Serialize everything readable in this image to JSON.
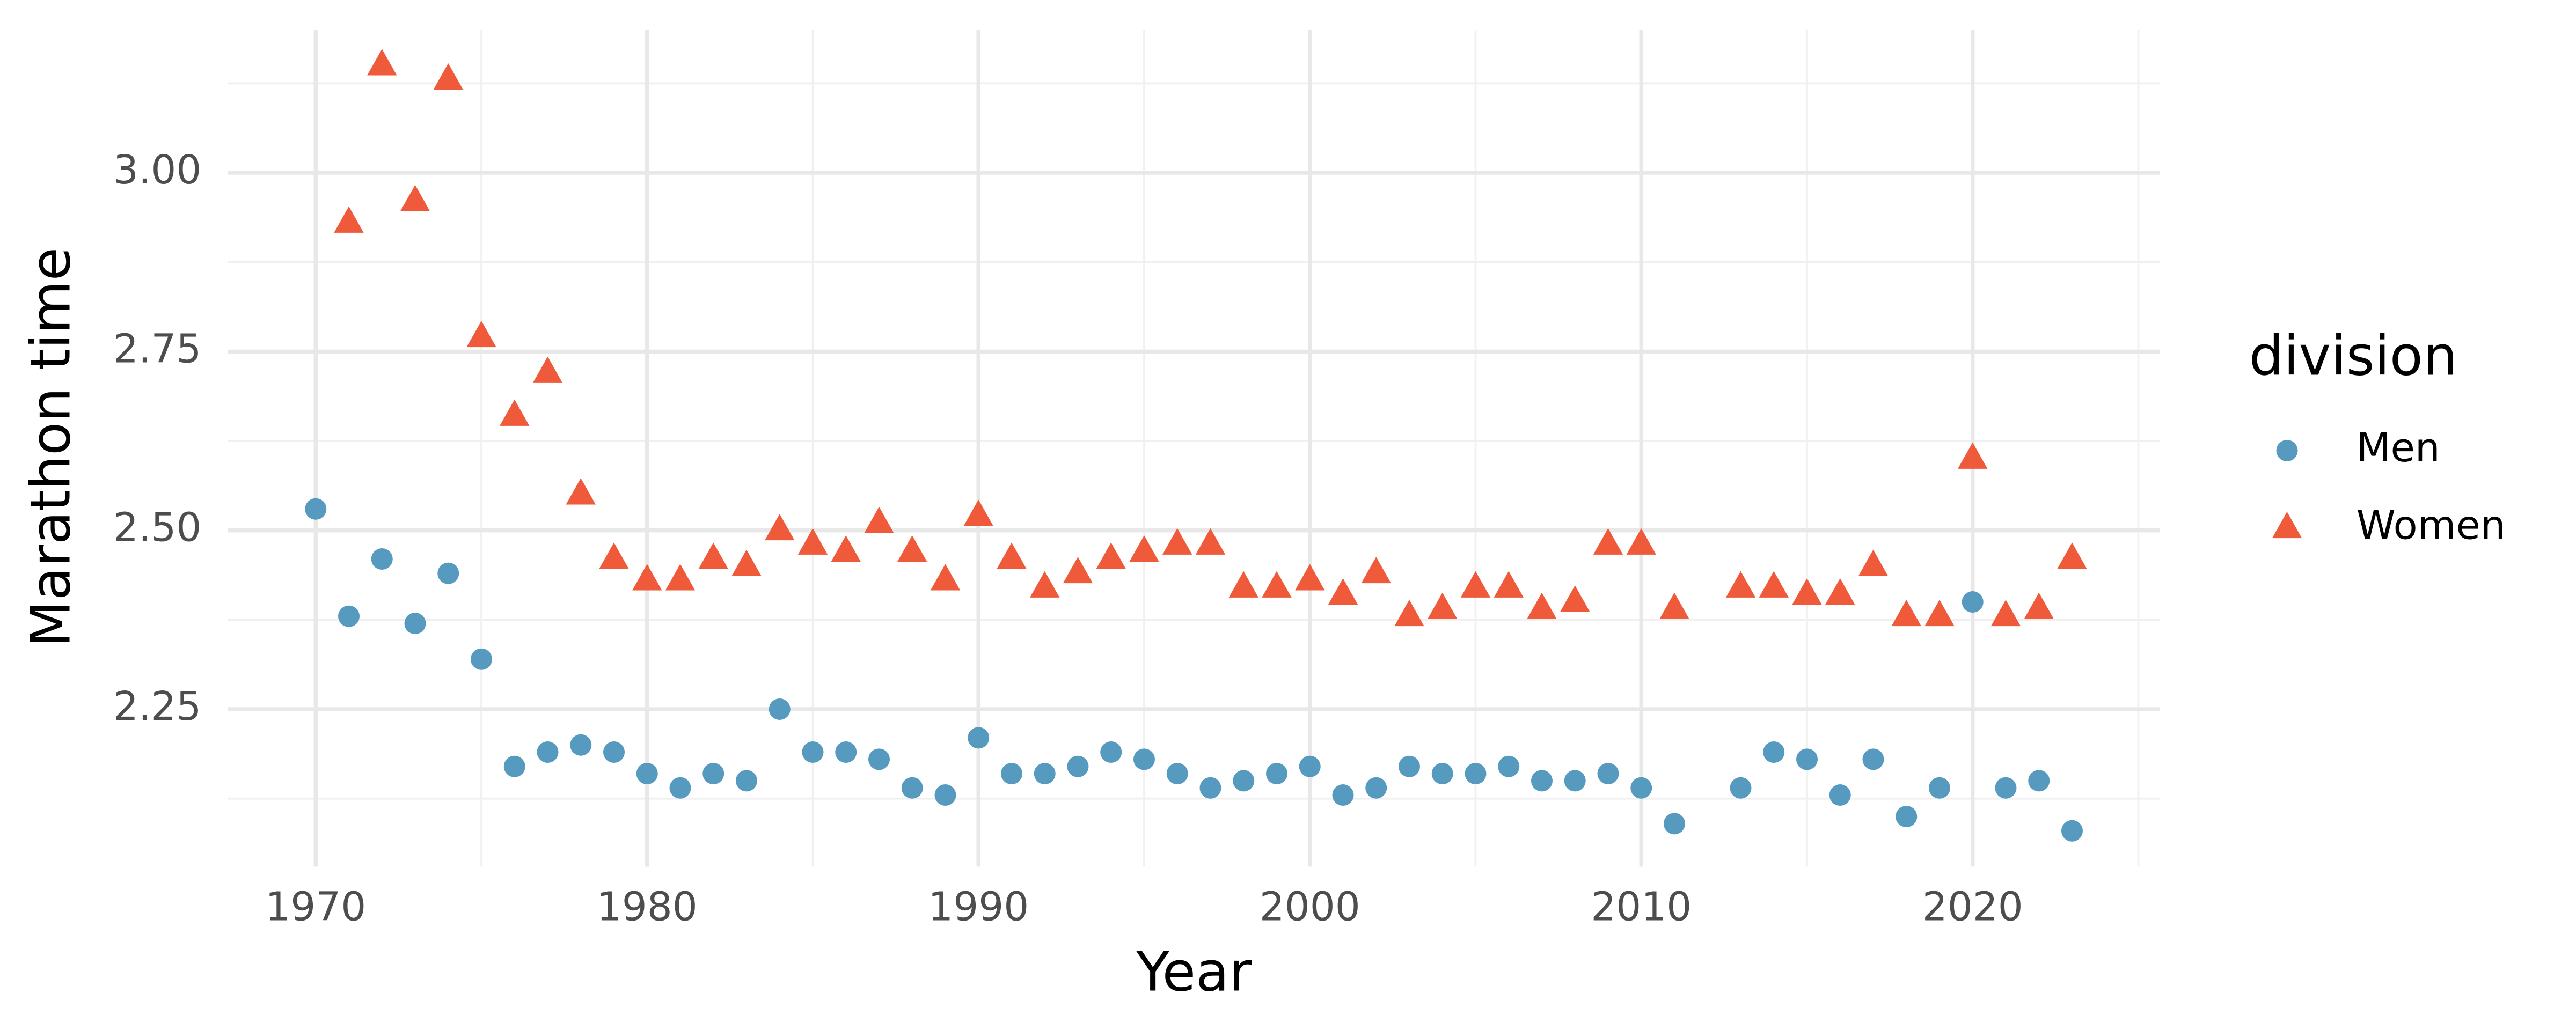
{
  "chart_data": {
    "type": "scatter",
    "x_label": "Year",
    "y_label": "Marathon time",
    "legend_title": "division",
    "legend_position": "right",
    "grid": true,
    "xlim": [
      1967.35,
      2025.65
    ],
    "ylim": [
      2.03,
      3.2
    ],
    "xticks": [
      1970,
      1980,
      1990,
      2000,
      2010,
      2020
    ],
    "xminor": [
      1975,
      1985,
      1995,
      2005,
      2015,
      2025
    ],
    "yticks": [
      2.25,
      {
        "value": 2.5,
        "label": "2.50"
      },
      2.75,
      {
        "value": 3,
        "label": "3.00"
      }
    ],
    "yminor": [
      2.125,
      2.375,
      2.625,
      2.875,
      3.125
    ],
    "x": [
      1970,
      1971,
      1972,
      1973,
      1974,
      1975,
      1976,
      1977,
      1978,
      1979,
      1980,
      1981,
      1982,
      1983,
      1984,
      1985,
      1986,
      1987,
      1988,
      1989,
      1990,
      1991,
      1992,
      1993,
      1994,
      1995,
      1996,
      1997,
      1998,
      1999,
      2000,
      2001,
      2002,
      2003,
      2004,
      2005,
      2006,
      2007,
      2008,
      2009,
      2010,
      2011,
      2012,
      2013,
      2014,
      2015,
      2016,
      2017,
      2018,
      2019,
      2020,
      2021,
      2022,
      2023
    ],
    "series": [
      {
        "name": "Men",
        "color": "#569bbf",
        "marker": "circle",
        "values": [
          2.53,
          2.38,
          2.46,
          2.37,
          2.44,
          2.32,
          2.17,
          2.19,
          2.2,
          2.19,
          2.16,
          2.14,
          2.16,
          2.15,
          2.25,
          2.19,
          2.19,
          2.18,
          2.14,
          2.13,
          2.21,
          2.16,
          2.16,
          2.17,
          2.19,
          2.18,
          2.16,
          2.14,
          2.15,
          2.16,
          2.17,
          2.13,
          2.14,
          2.17,
          2.16,
          2.16,
          2.17,
          2.15,
          2.15,
          2.16,
          2.14,
          2.09,
          null,
          2.14,
          2.19,
          2.18,
          2.13,
          2.18,
          2.1,
          2.14,
          2.4,
          2.14,
          2.15,
          2.08
        ]
      },
      {
        "name": "Women",
        "color": "#ee5a3a",
        "marker": "triangle",
        "values": [
          null,
          2.93,
          3.15,
          2.96,
          3.13,
          2.77,
          2.66,
          2.72,
          2.55,
          2.46,
          2.43,
          2.43,
          2.46,
          2.45,
          2.5,
          2.48,
          2.47,
          2.51,
          2.47,
          2.43,
          2.52,
          2.46,
          2.42,
          2.44,
          2.46,
          2.47,
          2.48,
          2.48,
          2.42,
          2.42,
          2.43,
          2.41,
          2.44,
          2.38,
          2.39,
          2.42,
          2.42,
          2.39,
          2.4,
          2.48,
          2.48,
          2.39,
          null,
          2.42,
          2.42,
          2.41,
          2.41,
          2.45,
          2.38,
          2.38,
          2.6,
          2.38,
          2.39,
          2.46
        ]
      }
    ]
  }
}
